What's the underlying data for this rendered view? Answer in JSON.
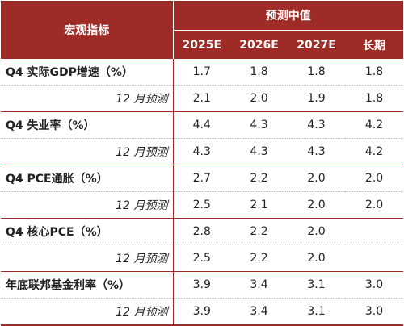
{
  "header": {
    "indicator_label": "宏观指标",
    "forecast_label": "预测中值",
    "years": [
      "2025E",
      "2026E",
      "2027E",
      "长期"
    ]
  },
  "rows": [
    {
      "label": "Q4 实际GDP增速（%）",
      "values": [
        "1.7",
        "1.8",
        "1.8",
        "1.8"
      ]
    },
    {
      "label": "12 月预测",
      "values": [
        "2.1",
        "2.0",
        "1.9",
        "1.8"
      ]
    },
    {
      "label": "Q4 失业率（%）",
      "values": [
        "4.4",
        "4.3",
        "4.3",
        "4.2"
      ]
    },
    {
      "label": "12 月预测",
      "values": [
        "4.3",
        "4.3",
        "4.3",
        "4.2"
      ]
    },
    {
      "label": "Q4 PCE通胀（%）",
      "values": [
        "2.7",
        "2.2",
        "2.0",
        "2.0"
      ]
    },
    {
      "label": "12 月预测",
      "values": [
        "2.5",
        "2.1",
        "2.0",
        "2.0"
      ]
    },
    {
      "label": "Q4 核心PCE（%）",
      "values": [
        "2.8",
        "2.2",
        "2.0",
        ""
      ]
    },
    {
      "label": "12 月预测",
      "values": [
        "2.5",
        "2.2",
        "2.0",
        ""
      ]
    },
    {
      "label": "年底联邦基金利率（%）",
      "values": [
        "3.9",
        "3.4",
        "3.1",
        "3.0"
      ]
    },
    {
      "label": "12 月预测",
      "values": [
        "3.9",
        "3.4",
        "3.1",
        "3.0"
      ]
    }
  ]
}
